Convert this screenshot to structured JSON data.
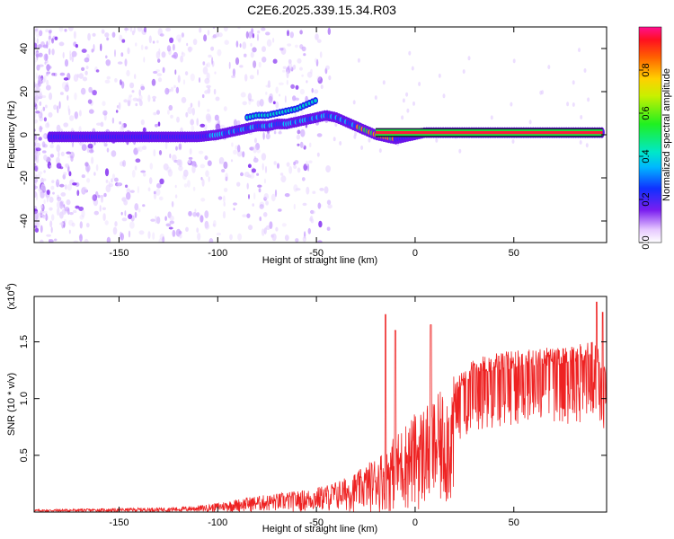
{
  "title": "C2E6.2025.339.15.34.R03",
  "chart_data": [
    {
      "type": "heatmap",
      "name": "spectrogram",
      "xlabel": "Height of straight line (km)",
      "ylabel": "Frequency (Hz)",
      "xlim": [
        -193,
        97
      ],
      "ylim": [
        -50,
        50
      ],
      "xticks": [
        -150,
        -100,
        -50,
        0,
        50
      ],
      "yticks": [
        -40,
        -20,
        0,
        20,
        40
      ],
      "colorbar": {
        "label": "Normalized spectral amplitude",
        "range": [
          0.0,
          1.0
        ],
        "ticks": [
          "0.0",
          "0.2",
          "0.4",
          "0.6",
          "0.8"
        ]
      },
      "ridge": {
        "x": [
          -180,
          -170,
          -160,
          -150,
          -140,
          -130,
          -120,
          -110,
          -100,
          -95,
          -90,
          -85,
          -80,
          -75,
          -70,
          -65,
          -60,
          -55,
          -50,
          -45,
          -40,
          -35,
          -30,
          -25,
          -20,
          -15,
          -10,
          -5,
          0,
          5,
          10,
          20,
          40,
          60,
          80,
          90,
          95
        ],
        "y": [
          -1,
          -1,
          -1,
          -1,
          -1,
          -1,
          -1,
          -1,
          0,
          1,
          2,
          3,
          4,
          4,
          5,
          5,
          6,
          7,
          8,
          9,
          8,
          6,
          4,
          2,
          0,
          -1,
          -2,
          -1,
          0,
          1,
          1,
          1,
          1,
          1,
          1,
          1,
          1
        ]
      },
      "secondary_ridge": {
        "x": [
          -85,
          -80,
          -75,
          -70,
          -65,
          -60,
          -55,
          -50
        ],
        "y": [
          8,
          9,
          9,
          10,
          11,
          12,
          14,
          16
        ]
      }
    },
    {
      "type": "line",
      "name": "snr",
      "xlabel": "Height of straight line (km)",
      "ylabel": "SNR (10 * v/v)",
      "y_scale_label": "(x10",
      "y_scale_exp": "4",
      "y_scale_close": ")",
      "xlim": [
        -193,
        97
      ],
      "ylim": [
        0,
        1.9
      ],
      "xticks": [
        -150,
        -100,
        -50,
        0,
        50
      ],
      "yticks": [
        0.5,
        1.0,
        1.5
      ],
      "ytick_labels": [
        "0.5",
        "1.0",
        "1.5"
      ],
      "color": "#ee2222",
      "envelope": {
        "x": [
          -193,
          -150,
          -120,
          -105,
          -95,
          -85,
          -75,
          -65,
          -55,
          -45,
          -35,
          -28,
          -22,
          -15,
          -10,
          -5,
          0,
          5,
          10,
          15,
          20,
          25,
          30,
          40,
          50,
          60,
          70,
          80,
          90,
          97
        ],
        "y": [
          0.02,
          0.03,
          0.04,
          0.06,
          0.09,
          0.12,
          0.14,
          0.16,
          0.18,
          0.22,
          0.28,
          0.34,
          0.42,
          0.52,
          0.62,
          0.72,
          0.8,
          0.87,
          0.92,
          1.0,
          1.1,
          1.22,
          1.3,
          1.35,
          1.37,
          1.38,
          1.4,
          1.42,
          1.45,
          1.3
        ]
      },
      "spikes": [
        {
          "x": -15,
          "y": 1.74
        },
        {
          "x": -10,
          "y": 1.6
        },
        {
          "x": 8,
          "y": 1.65
        },
        {
          "x": 92,
          "y": 1.85
        },
        {
          "x": 95,
          "y": 1.76
        }
      ]
    }
  ]
}
